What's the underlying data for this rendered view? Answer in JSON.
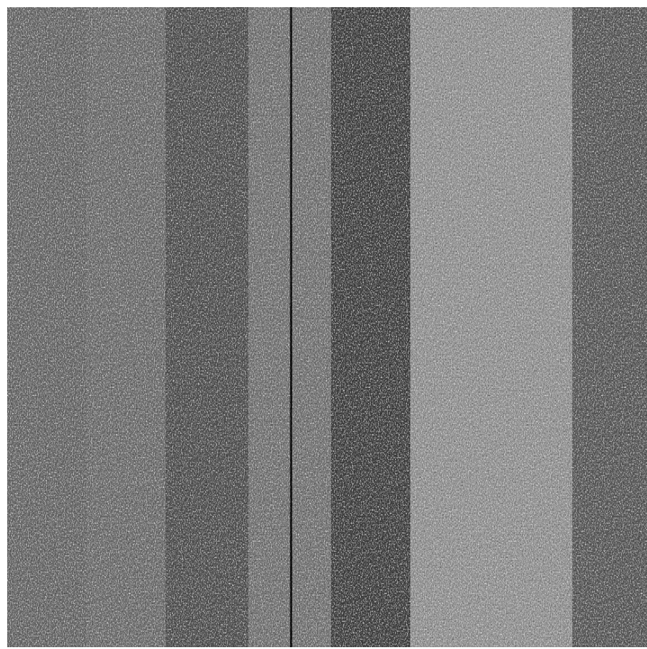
{
  "image": {
    "kind": "grayscale-noise-texture",
    "description_colors": {
      "background": "#ffffff",
      "band_shades": [
        "#6e6e6e",
        "#4e4e4e",
        "#828282",
        "#3c3c3c",
        "#9a9a9a",
        "#5a5a5a"
      ],
      "cursor_line": "#000000"
    }
  }
}
